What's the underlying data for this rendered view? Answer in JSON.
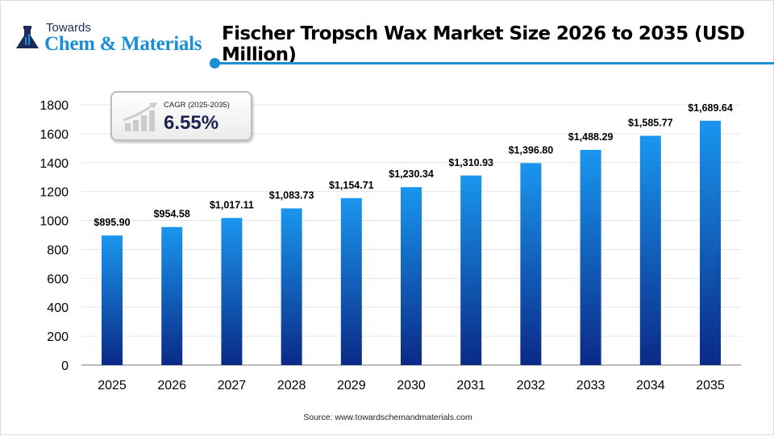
{
  "logo": {
    "line1": "Towards",
    "line2": "Chem & Materials"
  },
  "title": "Fischer Tropsch Wax Market Size 2026 to 2035 (USD Million)",
  "cagr": {
    "label": "CAGR (2025-2035)",
    "value": "6.55%"
  },
  "source": "Source: www.towardschemandmaterials.com",
  "colors": {
    "bar_top": "#1a96ee",
    "bar_bottom": "#0a2a86",
    "accent": "#1a8fd6"
  },
  "chart_data": {
    "type": "bar",
    "title": "Fischer Tropsch Wax Market Size 2026 to 2035 (USD Million)",
    "categories": [
      "2025",
      "2026",
      "2027",
      "2028",
      "2029",
      "2030",
      "2031",
      "2032",
      "2033",
      "2034",
      "2035"
    ],
    "values": [
      895.9,
      954.58,
      1017.11,
      1083.73,
      1154.71,
      1230.34,
      1310.93,
      1396.8,
      1488.29,
      1585.77,
      1689.64
    ],
    "data_labels": [
      "$895.90",
      "$954.58",
      "$1,017.11",
      "$1,083.73",
      "$1,154.71",
      "$1,230.34",
      "$1,310.93",
      "$1,396.80",
      "$1,488.29",
      "$1,585.77",
      "$1,689.64"
    ],
    "yticks": [
      0,
      200,
      400,
      600,
      800,
      1000,
      1200,
      1400,
      1600,
      1800
    ],
    "ylim": [
      0,
      1800
    ],
    "xlabel": "",
    "ylabel": "",
    "grid": true
  }
}
